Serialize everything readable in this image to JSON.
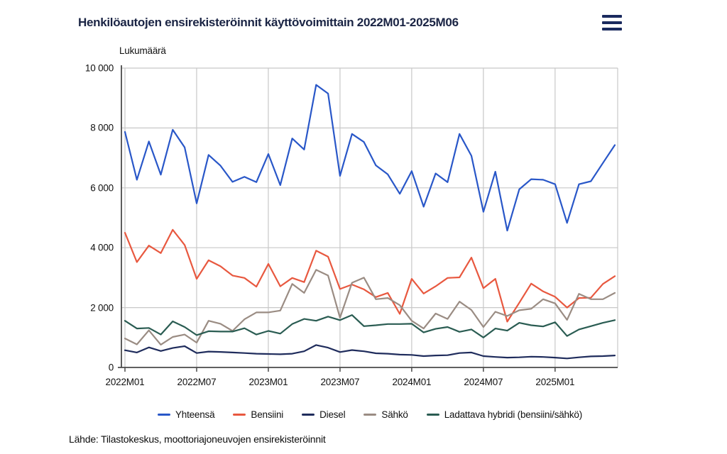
{
  "title": "Henkilöautojen ensirekisteröinnit käyttövoimittain 2022M01-2025M06",
  "source": "Lähde: Tilastokeskus, moottoriajoneuvojen ensirekisteröinnit",
  "menu_icon": "hamburger-menu-icon",
  "colors": {
    "title_text": "#1a2444",
    "menu_icon": "#1a2a5e",
    "grid": "#c8c8c8",
    "axis": "#4a4a4a",
    "tick_text": "#111111"
  },
  "chart_data": {
    "type": "line",
    "title": "Henkilöautojen ensirekisteröinnit käyttövoimittain 2022M01-2025M06",
    "xlabel": "",
    "ylabel": "Lukumäärä",
    "ylim": [
      0,
      10000
    ],
    "grid": true,
    "legend_position": "bottom",
    "y_ticks": [
      {
        "value": 0,
        "label": "0"
      },
      {
        "value": 2000,
        "label": "2 000"
      },
      {
        "value": 4000,
        "label": "4 000"
      },
      {
        "value": 6000,
        "label": "6 000"
      },
      {
        "value": 8000,
        "label": "8 000"
      },
      {
        "value": 10000,
        "label": "10 000"
      }
    ],
    "x_tick_indices": [
      0,
      6,
      12,
      18,
      24,
      30,
      36
    ],
    "x_tick_labels": [
      "2022M01",
      "2022M07",
      "2023M01",
      "2023M07",
      "2024M01",
      "2024M07",
      "2025M01"
    ],
    "x": [
      "2022M01",
      "2022M02",
      "2022M03",
      "2022M04",
      "2022M05",
      "2022M06",
      "2022M07",
      "2022M08",
      "2022M09",
      "2022M10",
      "2022M11",
      "2022M12",
      "2023M01",
      "2023M02",
      "2023M03",
      "2023M04",
      "2023M05",
      "2023M06",
      "2023M07",
      "2023M08",
      "2023M09",
      "2023M10",
      "2023M11",
      "2023M12",
      "2024M01",
      "2024M02",
      "2024M03",
      "2024M04",
      "2024M05",
      "2024M06",
      "2024M07",
      "2024M08",
      "2024M09",
      "2024M10",
      "2024M11",
      "2024M12",
      "2025M01",
      "2025M02",
      "2025M03",
      "2025M04",
      "2025M05",
      "2025M06"
    ],
    "series": [
      {
        "name": "Yhteensä",
        "color": "#2957c8",
        "values": [
          7870,
          6270,
          7550,
          6440,
          7940,
          7350,
          5480,
          7100,
          6740,
          6200,
          6370,
          6190,
          7130,
          6090,
          7650,
          7280,
          9440,
          9150,
          6400,
          7800,
          7530,
          6750,
          6450,
          5800,
          6560,
          5370,
          6480,
          6190,
          7800,
          7070,
          5200,
          6540,
          4570,
          5950,
          6290,
          6270,
          6120,
          4830,
          6120,
          6220,
          6830,
          7430
        ]
      },
      {
        "name": "Bensiini",
        "color": "#e8583f",
        "values": [
          4500,
          3520,
          4070,
          3820,
          4600,
          4090,
          2960,
          3580,
          3380,
          3070,
          2990,
          2700,
          3460,
          2710,
          2990,
          2850,
          3900,
          3700,
          2620,
          2770,
          2610,
          2350,
          2490,
          1790,
          2960,
          2470,
          2710,
          2990,
          3010,
          3670,
          2650,
          2960,
          1530,
          2160,
          2800,
          2540,
          2360,
          2000,
          2320,
          2330,
          2790,
          3050
        ]
      },
      {
        "name": "Diesel",
        "color": "#1f2c5c",
        "values": [
          575,
          500,
          670,
          550,
          650,
          710,
          480,
          530,
          520,
          500,
          480,
          460,
          450,
          440,
          460,
          540,
          750,
          660,
          515,
          580,
          540,
          475,
          460,
          430,
          420,
          380,
          400,
          410,
          480,
          500,
          380,
          350,
          330,
          340,
          360,
          350,
          330,
          300,
          340,
          370,
          380,
          400
        ]
      },
      {
        "name": "Sähkö",
        "color": "#9a8c83",
        "values": [
          970,
          770,
          1240,
          760,
          1020,
          1100,
          830,
          1560,
          1460,
          1220,
          1610,
          1840,
          1840,
          1900,
          2790,
          2490,
          3260,
          3070,
          1660,
          2830,
          3000,
          2280,
          2320,
          2080,
          1560,
          1300,
          1800,
          1620,
          2200,
          1920,
          1350,
          1860,
          1720,
          1910,
          1960,
          2280,
          2140,
          1590,
          2460,
          2280,
          2280,
          2490
        ]
      },
      {
        "name": "Ladattava hybridi (bensiini/sähkö)",
        "color": "#2a5c52",
        "values": [
          1560,
          1300,
          1320,
          1100,
          1540,
          1350,
          1080,
          1210,
          1200,
          1200,
          1310,
          1100,
          1220,
          1130,
          1450,
          1620,
          1560,
          1700,
          1580,
          1750,
          1380,
          1410,
          1450,
          1450,
          1460,
          1170,
          1290,
          1350,
          1190,
          1270,
          1000,
          1300,
          1230,
          1490,
          1410,
          1370,
          1510,
          1050,
          1270,
          1380,
          1490,
          1580
        ]
      }
    ]
  }
}
